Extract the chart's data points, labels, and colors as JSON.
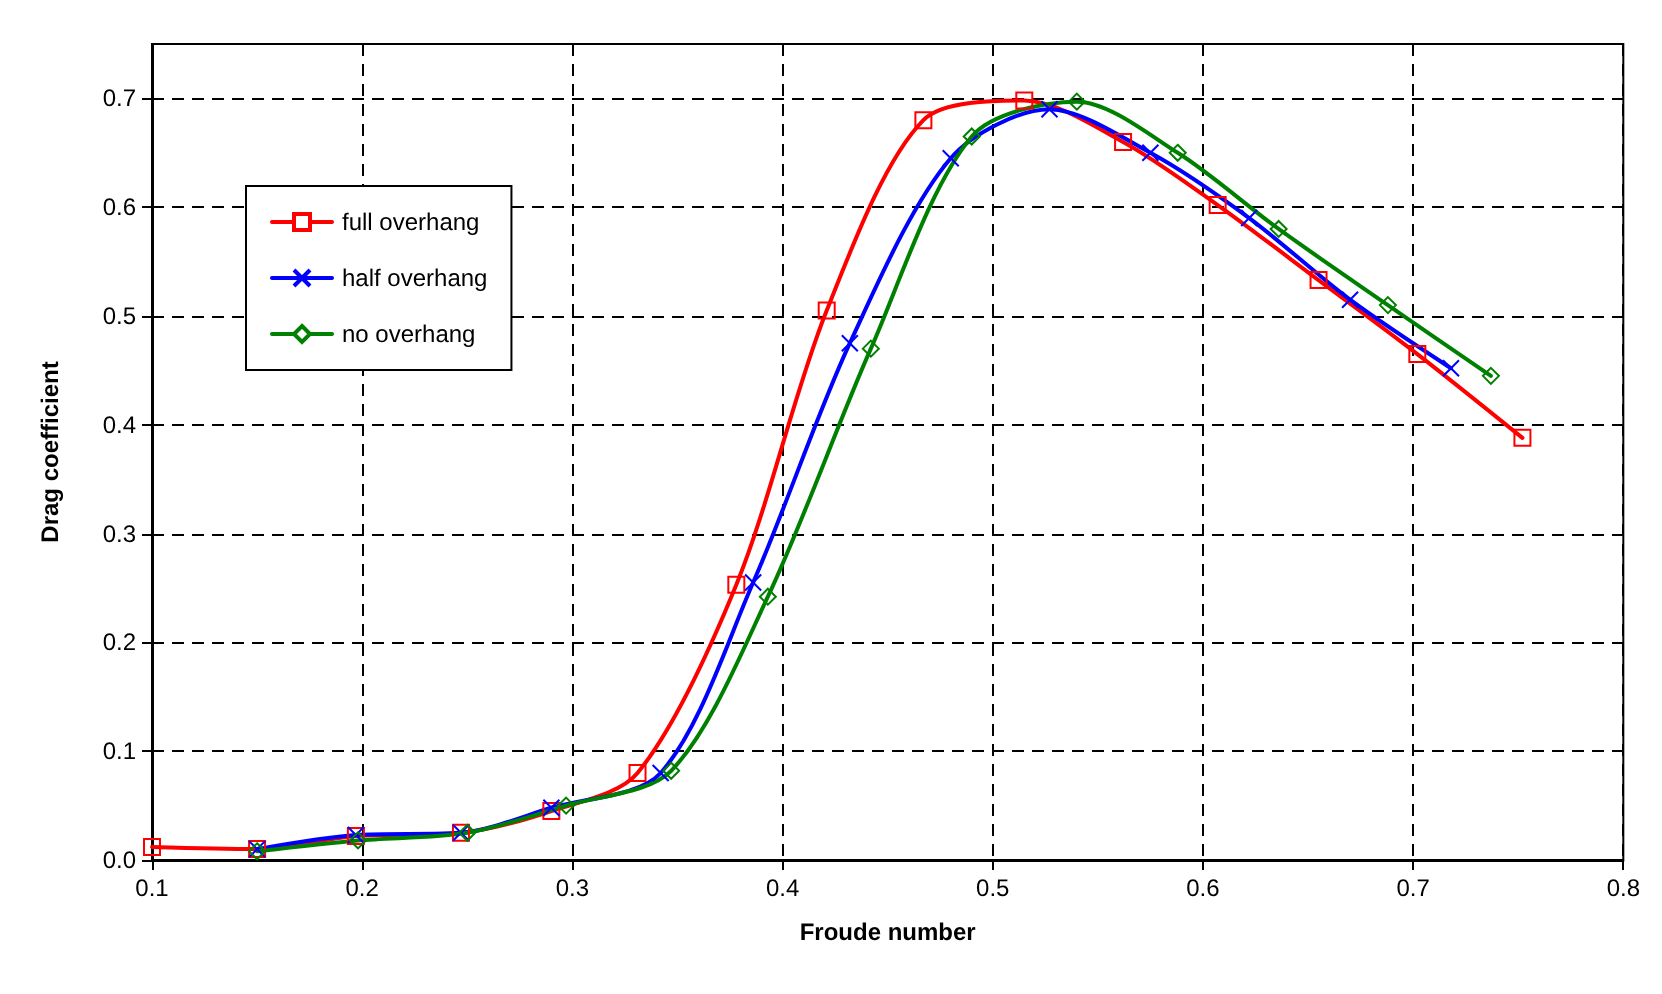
{
  "chart_data": {
    "type": "line",
    "xlabel": "Froude number",
    "ylabel": "Drag coefficient",
    "xlim": [
      0.1,
      0.8
    ],
    "xticks": [
      0.1,
      0.2,
      0.3,
      0.4,
      0.5,
      0.6,
      0.7,
      0.8
    ],
    "ylim": [
      0,
      0.75
    ],
    "yticks": [
      {
        "value": 0,
        "label": "0.0"
      },
      0.1,
      0.2,
      0.3,
      0.4,
      0.5,
      0.6,
      0.7
    ],
    "grid": true,
    "legend": "left",
    "line_style": "solid",
    "series": [
      {
        "name": "full overhang",
        "color": "#ff0000",
        "marker": "square",
        "x": [
          0.1,
          0.15,
          0.197,
          0.247,
          0.29,
          0.331,
          0.378,
          0.421,
          0.467,
          0.515,
          0.562,
          0.607,
          0.655,
          0.702,
          0.752
        ],
        "values": [
          0.012,
          0.01,
          0.022,
          0.025,
          0.045,
          0.08,
          0.253,
          0.505,
          0.68,
          0.698,
          0.66,
          0.602,
          0.533,
          0.465,
          0.388
        ]
      },
      {
        "name": "half overhang",
        "color": "#0000ff",
        "marker": "cross",
        "x": [
          0.15,
          0.197,
          0.247,
          0.29,
          0.342,
          0.386,
          0.432,
          0.48,
          0.527,
          0.575,
          0.622,
          0.67,
          0.718
        ],
        "values": [
          0.01,
          0.023,
          0.025,
          0.048,
          0.08,
          0.255,
          0.475,
          0.645,
          0.69,
          0.65,
          0.59,
          0.515,
          0.452
        ]
      },
      {
        "name": "no overhang",
        "color": "#008000",
        "marker": "diamond",
        "x": [
          0.15,
          0.198,
          0.25,
          0.297,
          0.347,
          0.393,
          0.442,
          0.49,
          0.54,
          0.588,
          0.636,
          0.688,
          0.737
        ],
        "values": [
          0.008,
          0.018,
          0.025,
          0.05,
          0.082,
          0.242,
          0.47,
          0.665,
          0.697,
          0.65,
          0.58,
          0.51,
          0.445
        ]
      }
    ]
  }
}
